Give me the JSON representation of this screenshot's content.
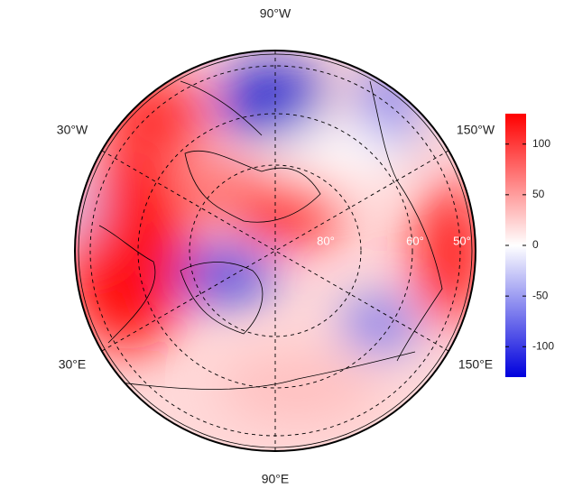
{
  "map": {
    "longitude_labels": [
      "90°W",
      "30°W",
      "150°W",
      "30°E",
      "150°E",
      "90°E"
    ],
    "latitude_labels": [
      "80°",
      "60°",
      "50°"
    ],
    "colorbar": {
      "ylim": [
        -130,
        130
      ],
      "yticks": [
        -100,
        -50,
        0,
        50,
        100
      ],
      "colors": [
        "#0000dd",
        "#ffffff",
        "#ff0000"
      ]
    }
  }
}
